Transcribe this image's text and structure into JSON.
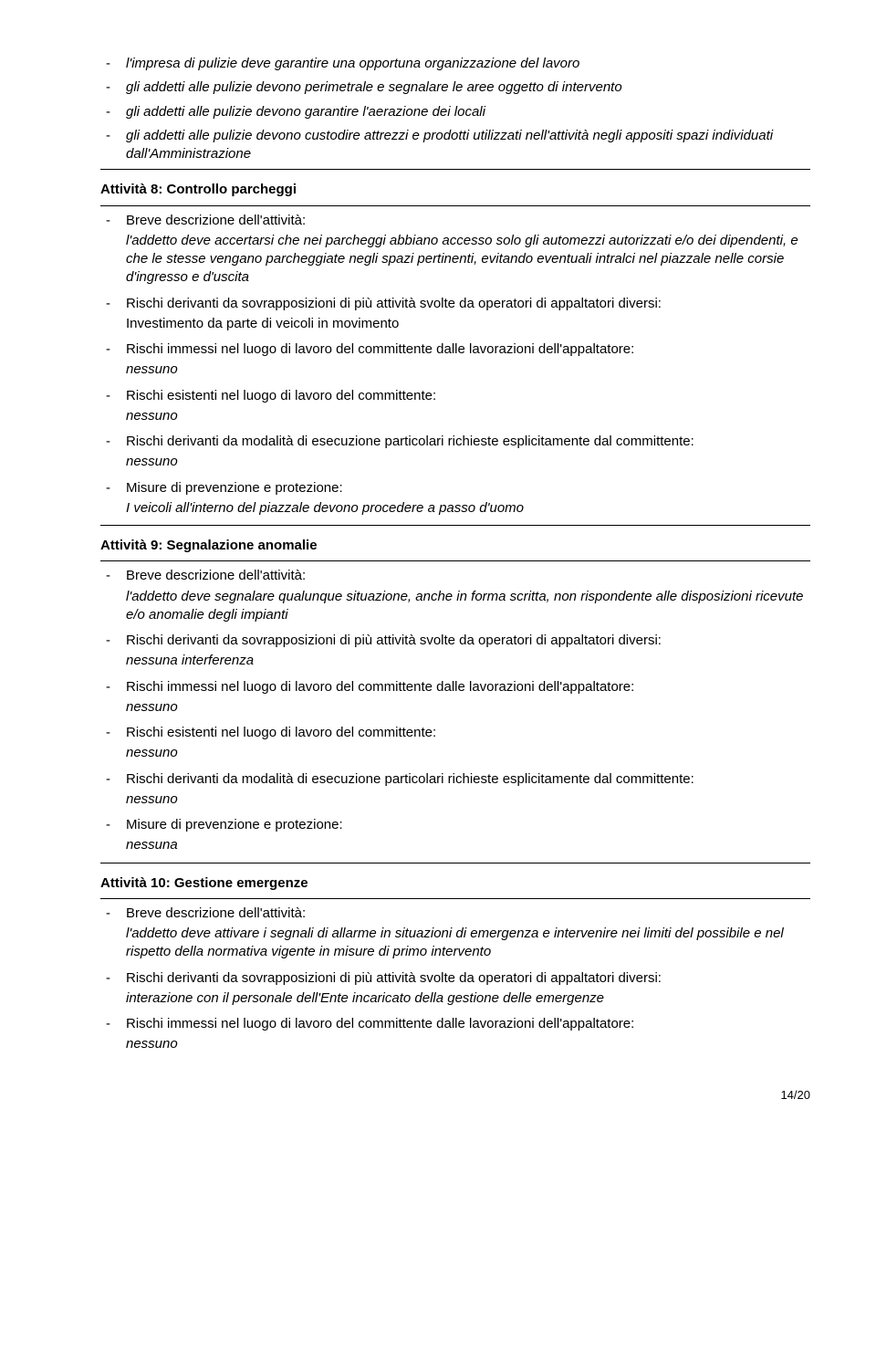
{
  "top_list": [
    "l'impresa di pulizie deve garantire una opportuna organizzazione del lavoro",
    "gli addetti alle pulizie devono perimetrale e segnalare le aree oggetto di intervento",
    "gli addetti alle pulizie devono garantire l'aerazione dei locali",
    "gli addetti alle pulizie devono custodire attrezzi e prodotti utilizzati nell'attività negli appositi spazi individuati dall'Amministrazione"
  ],
  "act8": {
    "title": "Attività 8: Controllo parcheggi",
    "items": [
      {
        "label": "Breve descrizione dell'attività:",
        "body": "l'addetto deve accertarsi che nei parcheggi abbiano accesso solo gli automezzi autorizzati e/o dei dipendenti, e che le stesse vengano parcheggiate negli spazi pertinenti, evitando eventuali intralci nel piazzale nelle corsie d'ingresso e d'uscita",
        "body_italic": true
      },
      {
        "label": "Rischi derivanti da sovrapposizioni di più attività svolte da operatori di appaltatori diversi:",
        "body": "Investimento da parte di veicoli in movimento",
        "body_italic": false
      },
      {
        "label": "Rischi immessi nel luogo di lavoro del committente dalle lavorazioni dell'appaltatore:",
        "body": "nessuno",
        "body_italic": true
      },
      {
        "label": "Rischi esistenti nel luogo di lavoro del committente:",
        "body": "nessuno",
        "body_italic": true
      },
      {
        "label": "Rischi derivanti da modalità di esecuzione particolari richieste esplicitamente dal committente:",
        "body": "nessuno",
        "body_italic": true
      },
      {
        "label": "Misure di prevenzione e protezione:",
        "body": "I veicoli all'interno del piazzale devono procedere a passo d'uomo",
        "body_italic": true
      }
    ]
  },
  "act9": {
    "title": "Attività 9: Segnalazione anomalie",
    "items": [
      {
        "label": "Breve descrizione dell'attività:",
        "body": "l'addetto deve segnalare qualunque situazione, anche in forma scritta, non rispondente alle disposizioni ricevute e/o anomalie degli impianti",
        "body_italic": true
      },
      {
        "label": "Rischi derivanti da sovrapposizioni di più attività svolte da operatori di appaltatori diversi:",
        "body": "nessuna interferenza",
        "body_italic": true
      },
      {
        "label": "Rischi immessi nel luogo di lavoro del committente dalle lavorazioni dell'appaltatore:",
        "body": "nessuno",
        "body_italic": true
      },
      {
        "label": "Rischi esistenti nel luogo di lavoro del committente:",
        "body": "nessuno",
        "body_italic": true
      },
      {
        "label": "Rischi derivanti da modalità di esecuzione particolari richieste esplicitamente dal committente:",
        "body": "nessuno",
        "body_italic": true
      },
      {
        "label": "Misure di prevenzione e protezione:",
        "body": "nessuna",
        "body_italic": true
      }
    ]
  },
  "act10": {
    "title": "Attività 10: Gestione emergenze",
    "items": [
      {
        "label": "Breve descrizione dell'attività:",
        "body": "l'addetto deve attivare i segnali di allarme in situazioni di emergenza e intervenire nei limiti del possibile e nel rispetto della normativa vigente in misure di primo intervento",
        "body_italic": true
      },
      {
        "label": "Rischi derivanti da sovrapposizioni di più attività svolte da operatori di appaltatori diversi:",
        "body": "interazione con il personale dell'Ente incaricato della gestione delle emergenze",
        "body_italic": true
      },
      {
        "label": "Rischi immessi nel luogo di lavoro del committente dalle lavorazioni dell'appaltatore:",
        "body": "nessuno",
        "body_italic": true
      }
    ]
  },
  "page_number": "14/20"
}
